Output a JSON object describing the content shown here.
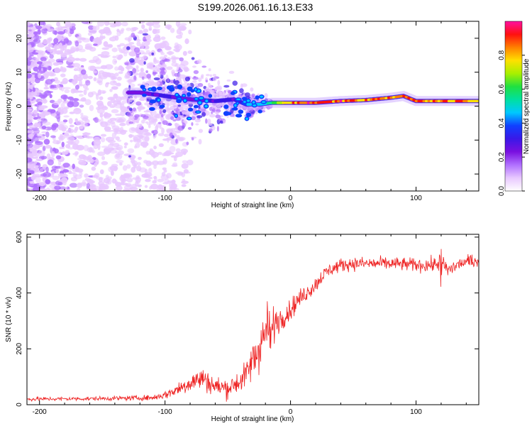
{
  "page_title": "S199.2026.061.16.13.E33",
  "chart_data": [
    {
      "id": "spectrogram",
      "type": "heatmap",
      "title": "",
      "xlabel": "Height of straight line (km)",
      "ylabel": "Frequency (Hz)",
      "xlim": [
        -210,
        150
      ],
      "ylim": [
        -25,
        25
      ],
      "xticks": [
        -200,
        -100,
        0,
        100
      ],
      "yticks": [
        -20,
        -10,
        0,
        10,
        20
      ],
      "xtick_labels": [
        "-200",
        "-100",
        "0",
        "100"
      ],
      "ytick_labels": [
        "-20",
        "-10",
        "0",
        "10",
        "20"
      ],
      "colorbar": {
        "label": "Normalized spectral amplitude",
        "range": [
          0,
          1
        ],
        "ticks": [
          0.0,
          0.2,
          0.4,
          0.6,
          0.8
        ],
        "tick_labels": [
          "0.0",
          "0.2",
          "0.4",
          "0.6",
          "0.8"
        ],
        "colors": [
          "#ffffff",
          "#e8c8ff",
          "#b070ff",
          "#7a10e0",
          "#3a18e8",
          "#1040ff",
          "#00c8ff",
          "#00e0a0",
          "#20e040",
          "#a8f000",
          "#ffe000",
          "#ff8000",
          "#ff1010",
          "#ff10a0"
        ]
      },
      "ridge": {
        "description": "dominant frequency ridge",
        "x": [
          -120,
          -100,
          -80,
          -60,
          -45,
          -35,
          -25,
          -15,
          0,
          20,
          40,
          60,
          80,
          90,
          100,
          120,
          150
        ],
        "y": [
          4,
          3,
          2,
          1.5,
          2,
          0.5,
          0.5,
          1,
          1,
          1,
          1.5,
          1.8,
          2.5,
          3,
          1.5,
          1.5,
          1.5
        ],
        "amplitude": [
          0.25,
          0.3,
          0.25,
          0.3,
          0.3,
          0.45,
          0.5,
          0.6,
          0.9,
          0.95,
          0.92,
          0.9,
          0.92,
          0.95,
          0.9,
          0.93,
          0.9
        ]
      },
      "noise_amplitude": 0.15
    },
    {
      "id": "snr",
      "type": "line",
      "title": "",
      "xlabel": "Height of straight line (km)",
      "ylabel": "SNR (10 * v/v)",
      "xlim": [
        -210,
        150
      ],
      "ylim": [
        0,
        610
      ],
      "xticks": [
        -200,
        -100,
        0,
        100
      ],
      "yticks": [
        0,
        200,
        400,
        600
      ],
      "xtick_labels": [
        "-200",
        "-100",
        "0",
        "100"
      ],
      "ytick_labels": [
        "0",
        "200",
        "400",
        "600"
      ],
      "line_color": "#ee2222",
      "series": [
        {
          "name": "SNR",
          "x": [
            -210,
            -150,
            -110,
            -100,
            -90,
            -80,
            -70,
            -60,
            -50,
            -40,
            -35,
            -30,
            -25,
            -20,
            -15,
            -10,
            -5,
            0,
            5,
            10,
            15,
            20,
            25,
            30,
            40,
            50,
            60,
            80,
            100,
            115,
            120,
            125,
            135,
            150
          ],
          "y": [
            20,
            22,
            25,
            35,
            55,
            80,
            95,
            65,
            60,
            85,
            110,
            160,
            200,
            260,
            260,
            300,
            320,
            340,
            370,
            390,
            410,
            430,
            460,
            480,
            500,
            505,
            505,
            505,
            500,
            500,
            520,
            480,
            505,
            520
          ],
          "noise": [
            6,
            6,
            8,
            12,
            20,
            30,
            35,
            30,
            30,
            35,
            40,
            60,
            70,
            70,
            50,
            40,
            35,
            30,
            30,
            25,
            25,
            25,
            22,
            20,
            20,
            20,
            20,
            20,
            20,
            22,
            40,
            20,
            20,
            22
          ]
        }
      ]
    }
  ]
}
